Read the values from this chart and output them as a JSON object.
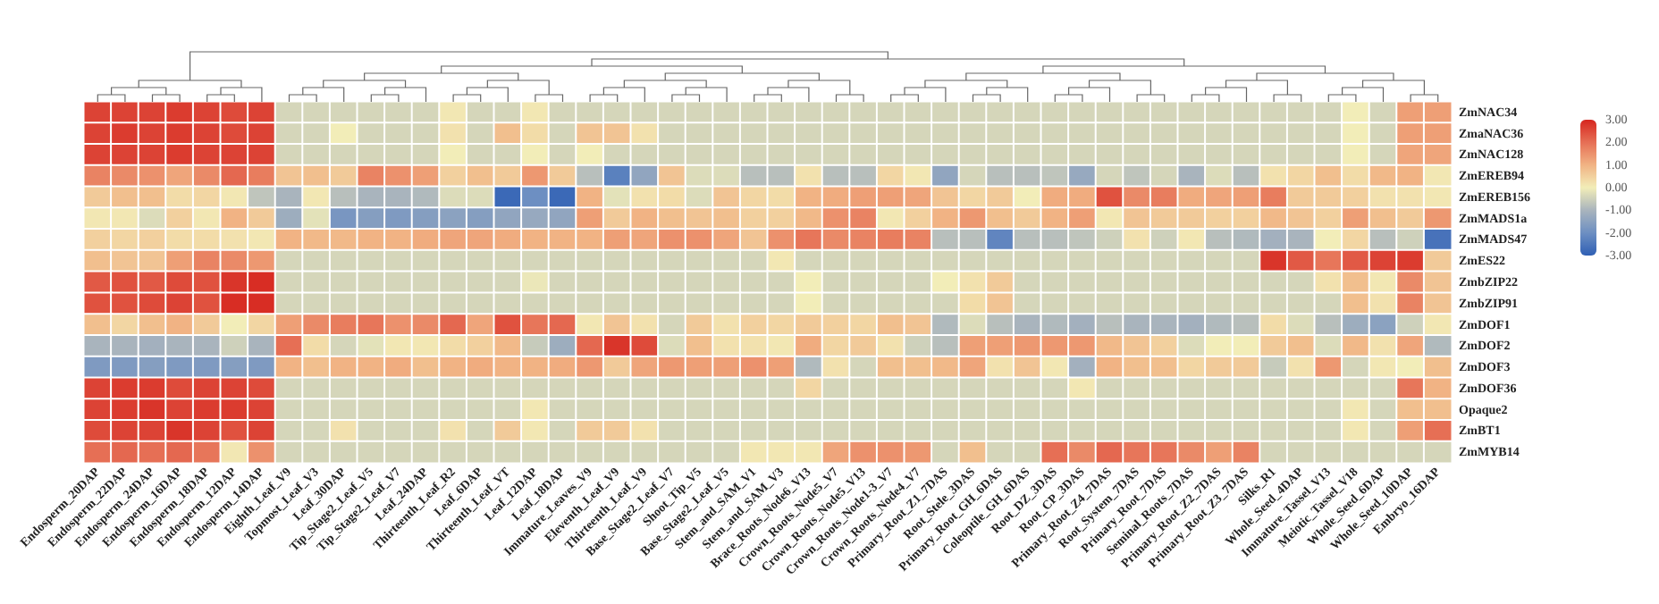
{
  "chart_data": {
    "type": "heatmap",
    "categories": [
      "Endosperm_20DAP",
      "Endosperm_22DAP",
      "Endosperm_24DAP",
      "Endosperm_16DAP",
      "Endosperm_18DAP",
      "Endosperm_12DAP",
      "Endosperm_14DAP",
      "Eighth_Leaf_V9",
      "Topmost_Leaf_V3",
      "Leaf_30DAP",
      "Tip_Stage2_Leaf_V5",
      "Tip_Stage2_Leaf_V7",
      "Leaf_24DAP",
      "Thirteenth_Leaf_R2",
      "Leaf_6DAP",
      "Thirteenth_Leaf_VT",
      "Leaf_12DAP",
      "Leaf_18DAP",
      "Immature_Leaves_V9",
      "Eleventh_Leaf_V9",
      "Thirteenth_Leaf_V9",
      "Base_Stage2_Leaf_V7",
      "Shoot_Tip_V5",
      "Base_Stage2_Leaf_V5",
      "Stem_and_SAM_V1",
      "Stem_and_SAM_V3",
      "Brace_Roots_Node6_V13",
      "Crown_Roots_Node5_V7",
      "Crown_Roots_Node5_V13",
      "Crown_Roots_Node1-3_V7",
      "Crown_Roots_Node4_V7",
      "Primary_Root_Z1_7DAS",
      "Root_Stele_3DAS",
      "Primary_Root_GH_6DAS",
      "Coleoptile_GH_6DAS",
      "Root_DZ_3DAS",
      "Root_CP_3DAS",
      "Primary_Root_Z4_7DAS",
      "Root_System_7DAS",
      "Primary_Root_7DAS",
      "Seminal_Roots_7DAS",
      "Primary_Root_Z2_7DAS",
      "Primary_Root_Z3_7DAS",
      "Silks_R1",
      "Whole_Seed_4DAP",
      "Immature_Tassel_V13",
      "Meiotic_Tassel_V18",
      "Whole_Seed_6DAP",
      "Whole_Seed_10DAP",
      "Embryo_16DAP"
    ],
    "y_categories": [
      "ZmNAC34",
      "ZmaNAC36",
      "ZmNAC128",
      "ZmEREB94",
      "ZmEREB156",
      "ZmMADS1a",
      "ZmMADS47",
      "ZmES22",
      "ZmbZIP22",
      "ZmbZIP91",
      "ZmDOF1",
      "ZmDOF2",
      "ZmDOF3",
      "ZmDOF36",
      "Opaque2",
      "ZmBT1",
      "ZmMYB14"
    ],
    "cells": [
      [
        2.6,
        2.6,
        2.6,
        2.7,
        2.6,
        2.5,
        2.6,
        -0.4,
        -0.4,
        -0.4,
        -0.4,
        -0.4,
        -0.4,
        0.1,
        -0.4,
        -0.4,
        0.1,
        -0.4,
        -0.4,
        -0.4,
        -0.4,
        -0.4,
        -0.4,
        -0.4,
        -0.4,
        -0.4,
        -0.4,
        -0.4,
        -0.4,
        -0.4,
        -0.4,
        -0.4,
        -0.4,
        -0.4,
        -0.4,
        -0.4,
        -0.4,
        -0.4,
        -0.4,
        -0.4,
        -0.4,
        -0.4,
        -0.4,
        -0.4,
        -0.4,
        -0.4,
        0.0,
        -0.4,
        1.3,
        1.3
      ],
      [
        2.6,
        2.7,
        2.6,
        2.7,
        2.6,
        2.5,
        2.6,
        -0.4,
        -0.4,
        0.0,
        -0.4,
        -0.4,
        -0.4,
        0.2,
        -0.4,
        0.8,
        0.3,
        -0.4,
        0.7,
        0.7,
        0.2,
        -0.4,
        -0.4,
        -0.4,
        -0.4,
        -0.4,
        -0.4,
        -0.4,
        -0.4,
        -0.4,
        -0.4,
        -0.4,
        -0.4,
        -0.4,
        -0.4,
        -0.4,
        -0.4,
        -0.4,
        -0.4,
        -0.4,
        -0.4,
        -0.4,
        -0.4,
        -0.4,
        -0.4,
        -0.4,
        0.0,
        -0.4,
        1.3,
        1.3
      ],
      [
        2.6,
        2.6,
        2.6,
        2.7,
        2.6,
        2.6,
        2.6,
        -0.4,
        -0.4,
        -0.4,
        -0.4,
        -0.4,
        -0.4,
        0.0,
        -0.4,
        -0.4,
        0.0,
        -0.4,
        0.0,
        -0.4,
        -0.4,
        -0.4,
        -0.4,
        -0.4,
        -0.4,
        -0.4,
        -0.4,
        -0.4,
        -0.4,
        -0.4,
        -0.4,
        -0.4,
        -0.4,
        -0.4,
        -0.4,
        -0.4,
        -0.4,
        -0.4,
        -0.4,
        -0.4,
        -0.4,
        -0.4,
        -0.4,
        -0.4,
        -0.4,
        -0.4,
        0.0,
        -0.4,
        1.2,
        1.2
      ],
      [
        1.7,
        1.6,
        1.5,
        1.2,
        1.6,
        2.1,
        1.8,
        0.7,
        0.8,
        0.6,
        1.7,
        1.5,
        1.3,
        0.5,
        0.8,
        0.6,
        1.4,
        0.6,
        -0.8,
        -2.3,
        -1.4,
        0.7,
        -0.3,
        -0.3,
        -0.8,
        -0.8,
        0.2,
        -0.8,
        -0.8,
        0.4,
        0.1,
        -1.4,
        -0.4,
        -0.8,
        -0.8,
        -0.7,
        -1.3,
        -0.4,
        -0.7,
        -0.4,
        -1.0,
        -0.3,
        -0.8,
        0.2,
        0.4,
        0.8,
        0.3,
        0.9,
        1.0,
        0.1
      ],
      [
        0.6,
        0.8,
        0.8,
        0.3,
        0.4,
        0.1,
        -0.7,
        -1.0,
        0.1,
        -0.8,
        -1.0,
        -1.0,
        -0.9,
        -0.3,
        -0.3,
        -2.8,
        -2.0,
        -2.8,
        1.0,
        -0.2,
        0.2,
        0.3,
        -0.3,
        0.7,
        0.4,
        0.3,
        1.0,
        1.1,
        1.3,
        1.3,
        1.2,
        0.7,
        0.4,
        0.6,
        0.0,
        1.1,
        1.1,
        2.4,
        1.6,
        1.8,
        1.1,
        1.2,
        1.3,
        1.8,
        0.6,
        0.6,
        0.5,
        0.2,
        0.2,
        0.1
      ],
      [
        0.1,
        0.1,
        -0.3,
        0.5,
        0.1,
        1.0,
        0.6,
        -1.2,
        -0.2,
        -1.8,
        -1.6,
        -1.7,
        -1.6,
        -1.5,
        -1.6,
        -1.4,
        -1.3,
        -1.4,
        1.3,
        0.6,
        1.0,
        0.8,
        0.7,
        0.8,
        0.5,
        0.5,
        0.9,
        1.5,
        1.7,
        0.1,
        0.5,
        1.0,
        1.4,
        0.8,
        0.6,
        1.0,
        1.3,
        0.1,
        0.7,
        0.6,
        0.6,
        0.5,
        0.5,
        0.9,
        0.7,
        0.5,
        1.3,
        0.8,
        0.6,
        1.4
      ],
      [
        0.5,
        0.4,
        0.5,
        0.3,
        0.3,
        0.2,
        0.1,
        1.0,
        0.9,
        0.9,
        1.0,
        1.0,
        1.1,
        1.2,
        1.2,
        1.1,
        1.0,
        1.0,
        1.0,
        1.3,
        1.2,
        1.5,
        1.5,
        1.2,
        0.7,
        1.5,
        1.9,
        1.6,
        1.7,
        1.8,
        1.7,
        -0.8,
        -0.8,
        -2.2,
        -0.8,
        -0.8,
        -0.7,
        -0.5,
        0.2,
        -0.5,
        0.1,
        -0.8,
        -0.9,
        -1.1,
        -1.0,
        0.0,
        0.4,
        -0.8,
        -0.5,
        -2.6
      ],
      [
        0.8,
        0.7,
        0.7,
        1.3,
        1.7,
        1.6,
        1.4,
        -0.4,
        -0.4,
        -0.4,
        -0.4,
        -0.4,
        -0.4,
        -0.4,
        -0.4,
        -0.4,
        -0.4,
        -0.4,
        -0.4,
        -0.4,
        -0.4,
        -0.4,
        -0.4,
        -0.4,
        -0.4,
        0.1,
        -0.4,
        -0.4,
        -0.4,
        -0.4,
        -0.4,
        -0.4,
        -0.4,
        -0.4,
        -0.4,
        -0.4,
        -0.4,
        -0.4,
        -0.4,
        -0.4,
        -0.4,
        -0.4,
        -0.4,
        2.8,
        2.3,
        1.9,
        2.3,
        2.6,
        2.7,
        0.6
      ],
      [
        2.3,
        2.4,
        2.3,
        2.5,
        2.4,
        2.8,
        2.9,
        -0.4,
        -0.4,
        -0.4,
        -0.4,
        -0.4,
        -0.4,
        -0.4,
        -0.4,
        -0.4,
        -0.1,
        -0.4,
        -0.4,
        -0.4,
        -0.4,
        -0.4,
        -0.4,
        -0.4,
        -0.4,
        -0.4,
        0.0,
        -0.4,
        -0.4,
        -0.4,
        -0.4,
        0.0,
        0.2,
        0.6,
        -0.4,
        -0.4,
        -0.4,
        -0.4,
        -0.4,
        -0.4,
        -0.4,
        -0.4,
        -0.4,
        -0.4,
        -0.4,
        0.2,
        0.8,
        0.1,
        1.6,
        0.7
      ],
      [
        2.4,
        2.4,
        2.5,
        2.6,
        2.4,
        2.9,
        2.9,
        -0.4,
        -0.4,
        -0.4,
        -0.4,
        -0.4,
        -0.4,
        -0.4,
        -0.4,
        -0.4,
        -0.4,
        -0.4,
        -0.4,
        -0.4,
        -0.4,
        -0.4,
        -0.4,
        -0.4,
        -0.4,
        -0.4,
        0.0,
        -0.4,
        -0.4,
        -0.4,
        -0.4,
        -0.4,
        0.3,
        0.7,
        -0.4,
        -0.4,
        -0.4,
        -0.4,
        -0.4,
        -0.4,
        -0.4,
        -0.4,
        -0.4,
        -0.4,
        -0.4,
        -0.4,
        0.8,
        0.2,
        1.7,
        0.7
      ],
      [
        0.8,
        0.4,
        0.8,
        1.0,
        0.6,
        0.0,
        0.4,
        1.3,
        1.6,
        1.8,
        1.9,
        1.5,
        1.6,
        2.1,
        1.2,
        2.4,
        1.9,
        2.1,
        0.1,
        0.7,
        0.2,
        -0.4,
        0.6,
        0.2,
        0.5,
        0.4,
        0.6,
        0.5,
        0.4,
        0.8,
        0.7,
        -0.9,
        -0.3,
        -0.8,
        -1.0,
        -0.9,
        -1.1,
        -0.8,
        -1.0,
        -1.0,
        -1.1,
        -0.9,
        -0.8,
        0.3,
        -0.3,
        -0.8,
        -1.2,
        -1.5,
        -0.5,
        0.1
      ],
      [
        -1.0,
        -1.0,
        -1.1,
        -1.0,
        -1.0,
        -0.5,
        -1.0,
        2.0,
        0.3,
        -0.4,
        -0.2,
        0.1,
        0.1,
        0.3,
        0.5,
        0.9,
        -0.6,
        -1.2,
        2.1,
        2.8,
        2.5,
        -0.3,
        0.8,
        0.2,
        0.2,
        0.1,
        1.1,
        0.4,
        0.6,
        0.2,
        -0.5,
        -0.8,
        1.3,
        1.3,
        1.4,
        1.4,
        1.4,
        0.9,
        0.7,
        0.5,
        -0.3,
        0.0,
        0.0,
        0.6,
        0.8,
        -0.3,
        0.9,
        0.2,
        1.2,
        -0.9
      ],
      [
        -1.7,
        -1.7,
        -1.6,
        -1.7,
        -1.7,
        -1.6,
        -1.7,
        1.0,
        0.8,
        1.0,
        1.0,
        1.1,
        0.8,
        1.0,
        1.1,
        1.0,
        1.0,
        1.1,
        1.4,
        0.6,
        1.2,
        1.4,
        1.3,
        1.3,
        1.5,
        1.3,
        -0.9,
        0.2,
        -0.4,
        0.8,
        0.8,
        0.9,
        1.2,
        0.2,
        0.7,
        0.1,
        -1.1,
        1.0,
        0.8,
        0.8,
        0.4,
        0.6,
        0.6,
        -0.6,
        0.2,
        1.4,
        -0.4,
        0.1,
        0.0,
        0.8
      ],
      [
        2.6,
        2.7,
        2.7,
        2.5,
        2.6,
        2.6,
        2.5,
        -0.4,
        -0.4,
        -0.4,
        -0.4,
        -0.4,
        -0.4,
        -0.4,
        -0.4,
        -0.4,
        -0.4,
        -0.4,
        -0.4,
        -0.4,
        -0.4,
        -0.4,
        -0.4,
        -0.4,
        -0.4,
        -0.4,
        0.4,
        -0.4,
        -0.4,
        -0.4,
        -0.4,
        -0.4,
        -0.4,
        -0.4,
        -0.4,
        -0.4,
        0.1,
        -0.4,
        -0.4,
        -0.4,
        -0.4,
        -0.4,
        -0.4,
        -0.4,
        -0.4,
        -0.4,
        -0.4,
        -0.4,
        1.9,
        1.0
      ],
      [
        2.6,
        2.7,
        2.8,
        2.6,
        2.7,
        2.7,
        2.6,
        -0.4,
        -0.4,
        -0.4,
        -0.4,
        -0.4,
        -0.4,
        -0.4,
        -0.4,
        -0.4,
        0.1,
        -0.4,
        -0.4,
        -0.4,
        -0.4,
        -0.4,
        -0.4,
        -0.4,
        -0.4,
        -0.4,
        -0.4,
        -0.4,
        -0.4,
        -0.4,
        -0.4,
        -0.4,
        -0.4,
        -0.4,
        -0.4,
        -0.4,
        -0.4,
        -0.4,
        -0.4,
        -0.4,
        -0.4,
        -0.4,
        -0.4,
        -0.4,
        -0.4,
        -0.4,
        0.1,
        -0.4,
        0.8,
        0.8
      ],
      [
        2.5,
        2.6,
        2.6,
        2.8,
        2.6,
        2.4,
        2.6,
        -0.4,
        -0.4,
        0.2,
        -0.4,
        -0.4,
        -0.4,
        0.2,
        -0.4,
        0.6,
        0.1,
        -0.4,
        0.6,
        0.6,
        0.2,
        -0.4,
        -0.4,
        -0.4,
        -0.4,
        -0.4,
        -0.4,
        -0.4,
        -0.4,
        -0.4,
        -0.4,
        -0.4,
        -0.4,
        -0.4,
        -0.4,
        -0.4,
        -0.4,
        -0.4,
        -0.4,
        -0.4,
        -0.4,
        -0.4,
        -0.4,
        -0.4,
        -0.4,
        -0.4,
        0.1,
        -0.4,
        1.3,
        2.0
      ],
      [
        2.0,
        2.1,
        2.0,
        2.1,
        1.9,
        0.1,
        1.5,
        -0.4,
        -0.4,
        -0.4,
        -0.4,
        -0.4,
        -0.4,
        -0.4,
        -0.4,
        -0.4,
        -0.4,
        -0.4,
        -0.4,
        -0.4,
        -0.4,
        -0.4,
        -0.4,
        -0.4,
        0.1,
        0.1,
        0.1,
        1.2,
        1.5,
        1.5,
        1.4,
        -0.4,
        0.8,
        -0.4,
        -0.4,
        2.0,
        1.6,
        2.1,
        1.9,
        1.9,
        1.6,
        1.3,
        1.7,
        -0.4,
        -0.4,
        -0.4,
        -0.4,
        -0.4,
        -0.4,
        -0.4
      ]
    ],
    "clim": [
      -3,
      3
    ],
    "cticks": [
      {
        "value": 3,
        "label": "3.00"
      },
      {
        "value": 2,
        "label": "2.00"
      },
      {
        "value": 1,
        "label": "1.00"
      },
      {
        "value": 0,
        "label": "0.00"
      },
      {
        "value": -1,
        "label": "-1.00"
      },
      {
        "value": -2,
        "label": "-2.00"
      },
      {
        "value": -3,
        "label": "-3.00"
      }
    ]
  }
}
